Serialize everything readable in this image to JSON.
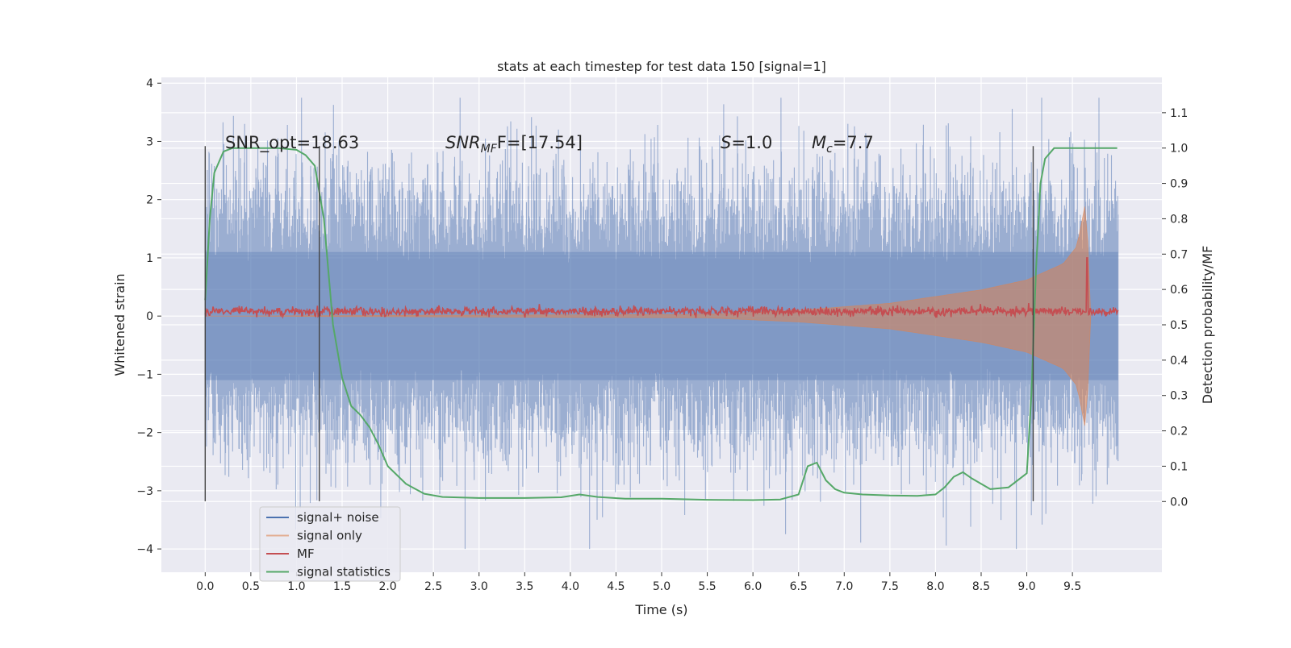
{
  "chart_data": {
    "type": "line",
    "title": "stats at each timestep for test data 150 [signal=1]",
    "xlabel": "Time (s)",
    "ylabel": "Whitened strain",
    "ylabel_right": "Detection probability/MF",
    "xlim": [
      -0.48,
      10.48
    ],
    "ylim": [
      -4.4,
      4.1
    ],
    "ylim_right": [
      -0.2,
      1.2
    ],
    "x_ticks": [
      "0.0",
      "0.5",
      "1.0",
      "1.5",
      "2.0",
      "2.5",
      "3.0",
      "3.5",
      "4.0",
      "4.5",
      "5.0",
      "5.5",
      "6.0",
      "6.5",
      "7.0",
      "7.5",
      "8.0",
      "8.5",
      "9.0",
      "9.5"
    ],
    "y_ticks": [
      "−4",
      "−3",
      "−2",
      "−1",
      "0",
      "1",
      "2",
      "3",
      "4"
    ],
    "y_right_ticks": [
      "0.0",
      "0.1",
      "0.2",
      "0.3",
      "0.4",
      "0.5",
      "0.6",
      "0.7",
      "0.8",
      "0.9",
      "1.0",
      "1.1"
    ],
    "grid": true,
    "background": "#eaeaf2",
    "annotations": {
      "snr_opt": "SNR_opt=18.63",
      "snr_mf_label": "SNR",
      "snr_mf_sub": "MF",
      "snr_mf_suffix": "F=[17.54]",
      "s_label": "S",
      "s_value": "=1.0",
      "mc_label": "M",
      "mc_sub": "c",
      "mc_value": "=7.7"
    },
    "legend": {
      "placement": "bottom-left",
      "entries": [
        {
          "label": "signal+ noise",
          "color": "#4c72b0"
        },
        {
          "label": "signal only",
          "color": "#dd8452"
        },
        {
          "label": "MF",
          "color": "#c44e52"
        },
        {
          "label": "signal statistics",
          "color": "#55a868"
        }
      ]
    },
    "series": [
      {
        "name": "signal+ noise",
        "axis": "left",
        "color": "#4c72b0",
        "x_range": [
          0.0,
          10.0
        ],
        "amplitude_std": 1.0,
        "peak_max": 3.75,
        "peak_min": -4.0
      },
      {
        "name": "signal only",
        "axis": "left",
        "color": "#dd8452",
        "x_range": [
          0.0,
          9.7
        ],
        "envelope": [
          [
            0.0,
            0.0
          ],
          [
            5.5,
            0.03
          ],
          [
            6.5,
            0.1
          ],
          [
            7.5,
            0.22
          ],
          [
            8.5,
            0.45
          ],
          [
            9.0,
            0.62
          ],
          [
            9.4,
            0.9
          ],
          [
            9.55,
            1.2
          ],
          [
            9.65,
            2.0
          ],
          [
            9.7,
            0.0
          ]
        ]
      },
      {
        "name": "MF",
        "axis": "left",
        "color": "#c44e52",
        "x_range": [
          0.0,
          10.0
        ],
        "baseline": 0.08,
        "spike": {
          "x": 9.66,
          "y": 1.0
        }
      },
      {
        "name": "signal statistics",
        "axis": "right",
        "color": "#55a868",
        "x": [
          0.0,
          0.05,
          0.1,
          0.2,
          0.3,
          0.5,
          0.8,
          1.0,
          1.1,
          1.2,
          1.3,
          1.4,
          1.5,
          1.6,
          1.7,
          1.8,
          1.9,
          2.0,
          2.2,
          2.4,
          2.6,
          3.0,
          3.5,
          3.9,
          4.1,
          4.3,
          4.6,
          5.0,
          5.5,
          6.0,
          6.3,
          6.5,
          6.6,
          6.7,
          6.8,
          6.9,
          7.0,
          7.2,
          7.5,
          7.8,
          8.0,
          8.1,
          8.2,
          8.3,
          8.4,
          8.6,
          8.8,
          9.0,
          9.05,
          9.1,
          9.15,
          9.2,
          9.3,
          9.5,
          9.7,
          9.99
        ],
        "y": [
          0.57,
          0.8,
          0.93,
          0.99,
          1.0,
          1.0,
          1.0,
          0.995,
          0.98,
          0.95,
          0.8,
          0.5,
          0.35,
          0.27,
          0.245,
          0.21,
          0.16,
          0.1,
          0.05,
          0.022,
          0.013,
          0.01,
          0.01,
          0.012,
          0.02,
          0.013,
          0.008,
          0.008,
          0.005,
          0.004,
          0.006,
          0.02,
          0.1,
          0.11,
          0.06,
          0.035,
          0.025,
          0.02,
          0.017,
          0.016,
          0.02,
          0.04,
          0.07,
          0.083,
          0.065,
          0.035,
          0.04,
          0.08,
          0.3,
          0.65,
          0.9,
          0.97,
          1.0,
          1.0,
          1.0,
          1.0
        ]
      }
    ],
    "vlines": [
      0.0,
      1.25,
      9.07
    ]
  }
}
